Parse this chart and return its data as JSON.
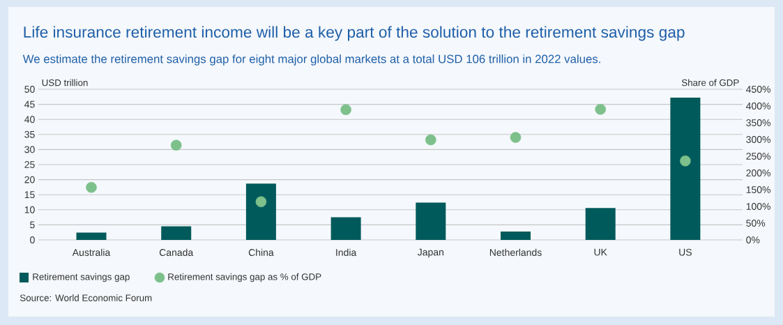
{
  "chart_data": {
    "type": "bar",
    "title": "Life insurance retirement income will be a key part of the solution to the retirement savings gap",
    "subtitle": "We estimate the retirement savings gap for eight major global markets at a total USD 106 trillion in 2022 values.",
    "ylabel": "USD trillion",
    "y2label": "Share of GDP",
    "categories": [
      "Australia",
      "Canada",
      "China",
      "India",
      "Japan",
      "Netherlands",
      "UK",
      "US"
    ],
    "series": [
      {
        "name": "Retirement savings gap",
        "color": "#005a5b",
        "values": [
          2.4,
          4.5,
          18.7,
          7.5,
          12.4,
          2.8,
          10.6,
          47.2
        ]
      },
      {
        "name": "Retirement savings gap as % of GDP",
        "type": "scatter",
        "axis": "y2",
        "color": "#7dc08c",
        "values": [
          157,
          283,
          114,
          389,
          299,
          306,
          390,
          236
        ]
      }
    ],
    "ylim": [
      0,
      50
    ],
    "yticks": [
      0,
      5,
      10,
      15,
      20,
      25,
      30,
      35,
      40,
      45,
      50
    ],
    "y2lim": [
      0,
      450
    ],
    "y2ticks": [
      {
        "value": 0,
        "label": "0%"
      },
      {
        "value": 50,
        "label": "50%"
      },
      {
        "value": 100,
        "label": "100%"
      },
      {
        "value": 150,
        "label": "150%"
      },
      {
        "value": 200,
        "label": "200%"
      },
      {
        "value": 250,
        "label": "250%"
      },
      {
        "value": 300,
        "label": "300%"
      },
      {
        "value": 350,
        "label": "350%"
      },
      {
        "value": 400,
        "label": "400%"
      },
      {
        "value": 450,
        "label": "450%"
      }
    ],
    "grid": "y",
    "legend": "bottom",
    "marker": "circle",
    "annotations": [
      "Source: World Economic Forum"
    ]
  }
}
